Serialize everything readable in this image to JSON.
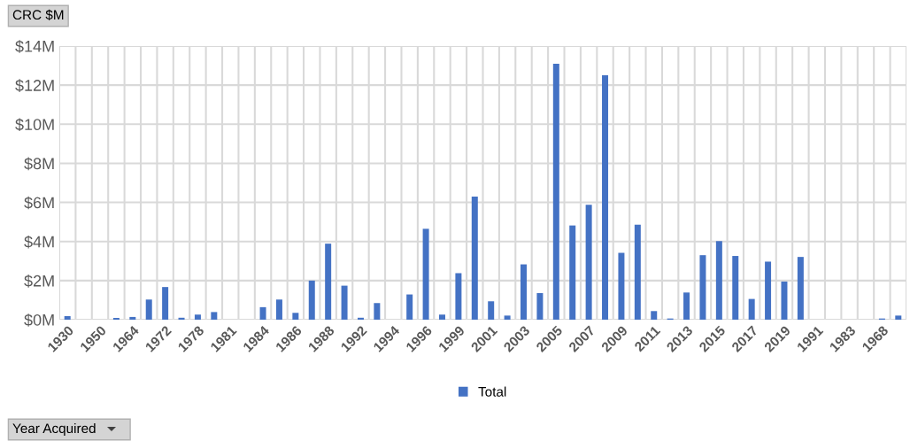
{
  "chart_data": {
    "type": "bar",
    "title": "CRC $M",
    "annotations": [
      "Year Acquired"
    ],
    "categories": [
      "1930",
      null,
      "1950",
      null,
      "1964",
      null,
      "1972",
      null,
      "1978",
      null,
      "1981",
      null,
      "1984",
      null,
      "1986",
      null,
      "1988",
      null,
      "1992",
      null,
      "1994",
      null,
      "1996",
      null,
      "1999",
      null,
      "2001",
      null,
      "2003",
      null,
      "2005",
      null,
      "2007",
      null,
      "2009",
      null,
      "2011",
      null,
      "2013",
      null,
      "2015",
      null,
      "2017",
      null,
      "2019",
      null,
      "1991",
      null,
      "1983",
      null,
      "1968",
      null
    ],
    "series": [
      {
        "name": "Total",
        "color": "#4472c4",
        "values": [
          0.18,
          null,
          null,
          0.09,
          0.14,
          1.03,
          1.67,
          0.1,
          0.26,
          0.39,
          null,
          null,
          0.64,
          1.03,
          0.35,
          2.0,
          3.89,
          1.74,
          0.1,
          0.85,
          null,
          1.29,
          4.65,
          0.26,
          2.38,
          6.3,
          0.94,
          0.21,
          2.83,
          1.36,
          13.09,
          4.82,
          5.88,
          12.5,
          3.42,
          4.86,
          0.44,
          0.06,
          1.39,
          3.3,
          4.02,
          3.26,
          1.06,
          2.97,
          1.95,
          3.21,
          null,
          null,
          null,
          null,
          0.06,
          0.21
        ]
      }
    ],
    "ylim": [
      0,
      14
    ],
    "yticks": [
      {
        "value": 0,
        "label": "$0M"
      },
      {
        "value": 2,
        "label": "$2M"
      },
      {
        "value": 4,
        "label": "$4M"
      },
      {
        "value": 6,
        "label": "$6M"
      },
      {
        "value": 8,
        "label": "$8M"
      },
      {
        "value": 10,
        "label": "$10M"
      },
      {
        "value": 12,
        "label": "$12M"
      },
      {
        "value": 14,
        "label": "$14M"
      }
    ],
    "grid": true,
    "legend": "bottom"
  }
}
